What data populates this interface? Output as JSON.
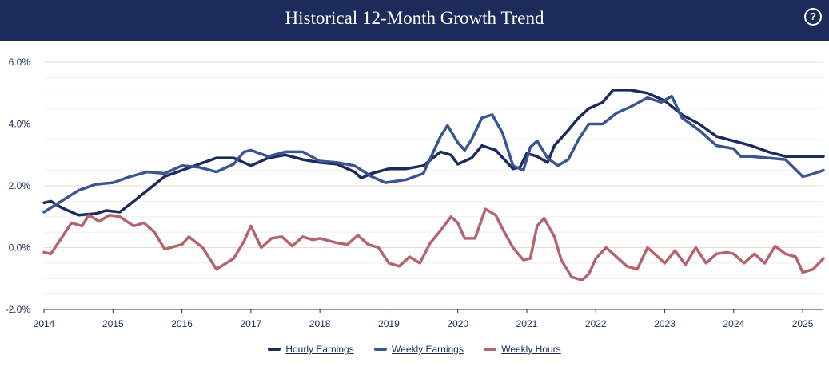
{
  "header": {
    "title": "Historical 12-Month Growth Trend",
    "help_icon": "?"
  },
  "chart_data": {
    "type": "line",
    "title": "Historical 12-Month Growth Trend",
    "xlabel": "",
    "ylabel": "",
    "xlim": [
      2014.0,
      2025.3
    ],
    "ylim": [
      -2.0,
      6.0
    ],
    "y_ticks": [
      -2.0,
      0.0,
      2.0,
      4.0,
      6.0
    ],
    "y_tick_labels": [
      "-2.0%",
      "0.0%",
      "2.0%",
      "4.0%",
      "6.0%"
    ],
    "x_ticks": [
      2014,
      2015,
      2016,
      2017,
      2018,
      2019,
      2020,
      2021,
      2022,
      2023,
      2024,
      2025
    ],
    "x_tick_labels": [
      "2014",
      "2015",
      "2016",
      "2017",
      "2018",
      "2019",
      "2020",
      "2021",
      "2022",
      "2023",
      "2024",
      "2025"
    ],
    "legend_position": "bottom",
    "series": [
      {
        "name": "Hourly Earnings",
        "color": "#1c2b5a",
        "points": [
          [
            2014.0,
            1.45
          ],
          [
            2014.1,
            1.5
          ],
          [
            2014.25,
            1.3
          ],
          [
            2014.5,
            1.05
          ],
          [
            2014.75,
            1.1
          ],
          [
            2014.9,
            1.2
          ],
          [
            2015.1,
            1.15
          ],
          [
            2015.3,
            1.5
          ],
          [
            2015.5,
            1.85
          ],
          [
            2015.75,
            2.3
          ],
          [
            2016.0,
            2.5
          ],
          [
            2016.25,
            2.7
          ],
          [
            2016.5,
            2.9
          ],
          [
            2016.75,
            2.9
          ],
          [
            2017.0,
            2.65
          ],
          [
            2017.25,
            2.9
          ],
          [
            2017.5,
            3.0
          ],
          [
            2017.75,
            2.85
          ],
          [
            2018.0,
            2.75
          ],
          [
            2018.25,
            2.7
          ],
          [
            2018.5,
            2.45
          ],
          [
            2018.6,
            2.25
          ],
          [
            2018.75,
            2.4
          ],
          [
            2019.0,
            2.55
          ],
          [
            2019.25,
            2.55
          ],
          [
            2019.5,
            2.65
          ],
          [
            2019.75,
            3.1
          ],
          [
            2019.9,
            3.0
          ],
          [
            2020.0,
            2.7
          ],
          [
            2020.2,
            2.9
          ],
          [
            2020.35,
            3.3
          ],
          [
            2020.55,
            3.15
          ],
          [
            2020.8,
            2.55
          ],
          [
            2020.9,
            2.6
          ],
          [
            2021.0,
            3.05
          ],
          [
            2021.15,
            2.95
          ],
          [
            2021.3,
            2.75
          ],
          [
            2021.4,
            3.3
          ],
          [
            2021.6,
            3.8
          ],
          [
            2021.75,
            4.2
          ],
          [
            2021.9,
            4.5
          ],
          [
            2022.1,
            4.7
          ],
          [
            2022.25,
            5.1
          ],
          [
            2022.5,
            5.1
          ],
          [
            2022.75,
            5.0
          ],
          [
            2023.0,
            4.75
          ],
          [
            2023.25,
            4.3
          ],
          [
            2023.5,
            4.0
          ],
          [
            2023.75,
            3.6
          ],
          [
            2024.0,
            3.45
          ],
          [
            2024.25,
            3.3
          ],
          [
            2024.5,
            3.1
          ],
          [
            2024.75,
            2.95
          ],
          [
            2025.0,
            2.95
          ],
          [
            2025.3,
            2.95
          ]
        ]
      },
      {
        "name": "Weekly Earnings",
        "color": "#3a5590",
        "points": [
          [
            2014.0,
            1.15
          ],
          [
            2014.25,
            1.5
          ],
          [
            2014.5,
            1.85
          ],
          [
            2014.75,
            2.05
          ],
          [
            2015.0,
            2.1
          ],
          [
            2015.25,
            2.3
          ],
          [
            2015.5,
            2.45
          ],
          [
            2015.75,
            2.4
          ],
          [
            2016.0,
            2.65
          ],
          [
            2016.25,
            2.6
          ],
          [
            2016.5,
            2.45
          ],
          [
            2016.75,
            2.7
          ],
          [
            2016.9,
            3.1
          ],
          [
            2017.0,
            3.15
          ],
          [
            2017.25,
            2.95
          ],
          [
            2017.5,
            3.1
          ],
          [
            2017.75,
            3.1
          ],
          [
            2018.0,
            2.8
          ],
          [
            2018.25,
            2.75
          ],
          [
            2018.5,
            2.65
          ],
          [
            2018.75,
            2.3
          ],
          [
            2018.95,
            2.1
          ],
          [
            2019.25,
            2.2
          ],
          [
            2019.5,
            2.4
          ],
          [
            2019.75,
            3.6
          ],
          [
            2019.85,
            3.95
          ],
          [
            2020.0,
            3.4
          ],
          [
            2020.1,
            3.15
          ],
          [
            2020.2,
            3.5
          ],
          [
            2020.35,
            4.2
          ],
          [
            2020.5,
            4.3
          ],
          [
            2020.65,
            3.7
          ],
          [
            2020.8,
            2.65
          ],
          [
            2020.95,
            2.5
          ],
          [
            2021.05,
            3.25
          ],
          [
            2021.15,
            3.45
          ],
          [
            2021.3,
            2.9
          ],
          [
            2021.45,
            2.65
          ],
          [
            2021.6,
            2.85
          ],
          [
            2021.75,
            3.5
          ],
          [
            2021.9,
            4.0
          ],
          [
            2022.1,
            4.0
          ],
          [
            2022.3,
            4.35
          ],
          [
            2022.5,
            4.55
          ],
          [
            2022.75,
            4.85
          ],
          [
            2022.95,
            4.7
          ],
          [
            2023.1,
            4.9
          ],
          [
            2023.25,
            4.2
          ],
          [
            2023.5,
            3.8
          ],
          [
            2023.75,
            3.3
          ],
          [
            2024.0,
            3.2
          ],
          [
            2024.1,
            2.95
          ],
          [
            2024.25,
            2.95
          ],
          [
            2024.5,
            2.9
          ],
          [
            2024.75,
            2.85
          ],
          [
            2025.0,
            2.3
          ],
          [
            2025.1,
            2.35
          ],
          [
            2025.3,
            2.5
          ]
        ]
      },
      {
        "name": "Weekly Hours",
        "color": "#b5636c",
        "points": [
          [
            2014.0,
            -0.15
          ],
          [
            2014.1,
            -0.2
          ],
          [
            2014.25,
            0.3
          ],
          [
            2014.4,
            0.8
          ],
          [
            2014.55,
            0.7
          ],
          [
            2014.65,
            1.05
          ],
          [
            2014.8,
            0.85
          ],
          [
            2014.95,
            1.05
          ],
          [
            2015.1,
            1.0
          ],
          [
            2015.3,
            0.7
          ],
          [
            2015.45,
            0.8
          ],
          [
            2015.6,
            0.5
          ],
          [
            2015.75,
            -0.05
          ],
          [
            2016.0,
            0.1
          ],
          [
            2016.1,
            0.35
          ],
          [
            2016.3,
            0.0
          ],
          [
            2016.5,
            -0.7
          ],
          [
            2016.75,
            -0.35
          ],
          [
            2016.9,
            0.2
          ],
          [
            2017.0,
            0.7
          ],
          [
            2017.15,
            0.0
          ],
          [
            2017.3,
            0.3
          ],
          [
            2017.45,
            0.35
          ],
          [
            2017.6,
            0.05
          ],
          [
            2017.75,
            0.35
          ],
          [
            2017.9,
            0.25
          ],
          [
            2018.0,
            0.3
          ],
          [
            2018.25,
            0.15
          ],
          [
            2018.4,
            0.1
          ],
          [
            2018.55,
            0.4
          ],
          [
            2018.7,
            0.1
          ],
          [
            2018.85,
            0.0
          ],
          [
            2019.0,
            -0.5
          ],
          [
            2019.15,
            -0.6
          ],
          [
            2019.3,
            -0.3
          ],
          [
            2019.45,
            -0.5
          ],
          [
            2019.6,
            0.15
          ],
          [
            2019.75,
            0.55
          ],
          [
            2019.9,
            1.0
          ],
          [
            2020.0,
            0.8
          ],
          [
            2020.1,
            0.3
          ],
          [
            2020.25,
            0.3
          ],
          [
            2020.4,
            1.25
          ],
          [
            2020.55,
            1.05
          ],
          [
            2020.65,
            0.6
          ],
          [
            2020.8,
            0.0
          ],
          [
            2020.95,
            -0.4
          ],
          [
            2021.05,
            -0.35
          ],
          [
            2021.15,
            0.7
          ],
          [
            2021.25,
            0.95
          ],
          [
            2021.4,
            0.35
          ],
          [
            2021.5,
            -0.4
          ],
          [
            2021.65,
            -0.95
          ],
          [
            2021.8,
            -1.05
          ],
          [
            2021.9,
            -0.85
          ],
          [
            2022.0,
            -0.35
          ],
          [
            2022.15,
            0.0
          ],
          [
            2022.3,
            -0.3
          ],
          [
            2022.45,
            -0.6
          ],
          [
            2022.6,
            -0.7
          ],
          [
            2022.75,
            0.0
          ],
          [
            2022.9,
            -0.3
          ],
          [
            2023.0,
            -0.5
          ],
          [
            2023.15,
            -0.1
          ],
          [
            2023.3,
            -0.55
          ],
          [
            2023.45,
            0.0
          ],
          [
            2023.6,
            -0.5
          ],
          [
            2023.75,
            -0.2
          ],
          [
            2023.9,
            -0.15
          ],
          [
            2024.0,
            -0.2
          ],
          [
            2024.15,
            -0.5
          ],
          [
            2024.3,
            -0.2
          ],
          [
            2024.45,
            -0.5
          ],
          [
            2024.6,
            0.05
          ],
          [
            2024.75,
            -0.2
          ],
          [
            2024.9,
            -0.3
          ],
          [
            2025.0,
            -0.8
          ],
          [
            2025.15,
            -0.7
          ],
          [
            2025.3,
            -0.35
          ]
        ]
      }
    ]
  }
}
